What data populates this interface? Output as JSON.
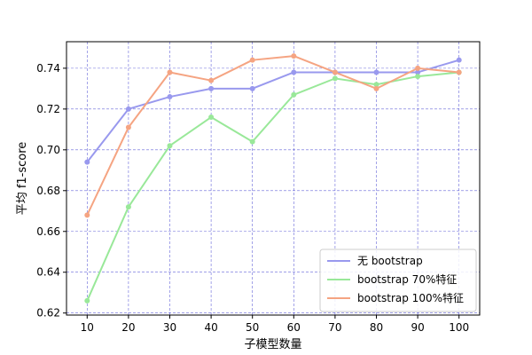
{
  "chart_data": {
    "type": "line",
    "title": "",
    "xlabel": "子模型数量",
    "ylabel": "平均 f1-score",
    "x": [
      10,
      20,
      30,
      40,
      50,
      60,
      70,
      80,
      90,
      100
    ],
    "xlim": [
      5,
      105
    ],
    "ylim": [
      0.619,
      0.753
    ],
    "xticks": [
      "10",
      "20",
      "30",
      "40",
      "50",
      "60",
      "70",
      "80",
      "90",
      "100"
    ],
    "yticks": [
      0.62,
      0.64,
      0.66,
      0.68,
      0.7,
      0.72,
      0.74
    ],
    "ytick_labels": [
      "0.62",
      "0.64",
      "0.66",
      "0.68",
      "0.70",
      "0.72",
      "0.74"
    ],
    "grid": true,
    "grid_color": "#3333cc",
    "legend_position": "lower-right",
    "series": [
      {
        "name": "无 bootstrap",
        "color": "#9999ee",
        "values": [
          0.694,
          0.72,
          0.726,
          0.73,
          0.73,
          0.738,
          0.738,
          0.738,
          0.738,
          0.744
        ]
      },
      {
        "name": "bootstrap 70%特征",
        "color": "#99e899",
        "values": [
          0.626,
          0.672,
          0.702,
          0.716,
          0.704,
          0.727,
          0.735,
          0.732,
          0.736,
          0.738
        ]
      },
      {
        "name": "bootstrap 100%特征",
        "color": "#f5a482",
        "values": [
          0.668,
          0.711,
          0.738,
          0.734,
          0.744,
          0.746,
          0.738,
          0.73,
          0.74,
          0.738
        ]
      }
    ]
  }
}
